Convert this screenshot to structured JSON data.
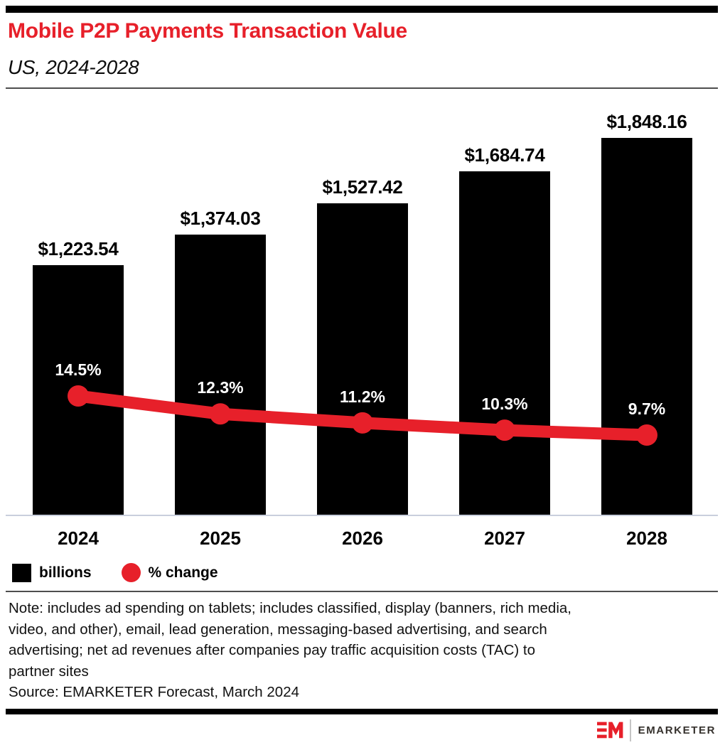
{
  "header": {
    "title": "Mobile P2P Payments Transaction Value",
    "subtitle": "US, 2024-2028"
  },
  "chart_data": {
    "type": "combo",
    "title": "Mobile P2P Payments Transaction Value",
    "subtitle": "US, 2024-2028",
    "categories": [
      "2024",
      "2025",
      "2026",
      "2027",
      "2028"
    ],
    "series": [
      {
        "name": "billions",
        "type": "bar",
        "unit": "USD billions",
        "values": [
          1223.54,
          1374.03,
          1527.42,
          1684.74,
          1848.16
        ],
        "labels": [
          "$1,223.54",
          "$1,374.03",
          "$1,527.42",
          "$1,684.74",
          "$1,848.16"
        ],
        "color": "#000000"
      },
      {
        "name": "% change",
        "type": "line",
        "unit": "percent",
        "values": [
          14.5,
          12.3,
          11.2,
          10.3,
          9.7
        ],
        "labels": [
          "14.5%",
          "12.3%",
          "11.2%",
          "10.3%",
          "9.7%"
        ],
        "color": "#e7202a"
      }
    ],
    "xlabel": "",
    "ylabel": "",
    "grid": false,
    "legend_position": "bottom"
  },
  "legend": {
    "items": [
      {
        "label": "billions",
        "swatch": "black-square"
      },
      {
        "label": "% change",
        "swatch": "red-circle"
      }
    ]
  },
  "footer": {
    "note": "Note: includes ad spending on tablets; includes classified, display (banners, rich media,\nvideo, and other), email, lead generation, messaging-based advertising, and search\nadvertising; net ad revenues after companies pay traffic acquisition costs (TAC) to\npartner sites",
    "source": "Source: EMARKETER Forecast, March 2024",
    "logo_text": "EMARKETER"
  },
  "colors": {
    "accent_red": "#e7202a",
    "bar_black": "#000000",
    "axis_line": "#c9cfdd",
    "divider_gray": "#4e4e4e",
    "percent_label_text": "#ffffff"
  }
}
